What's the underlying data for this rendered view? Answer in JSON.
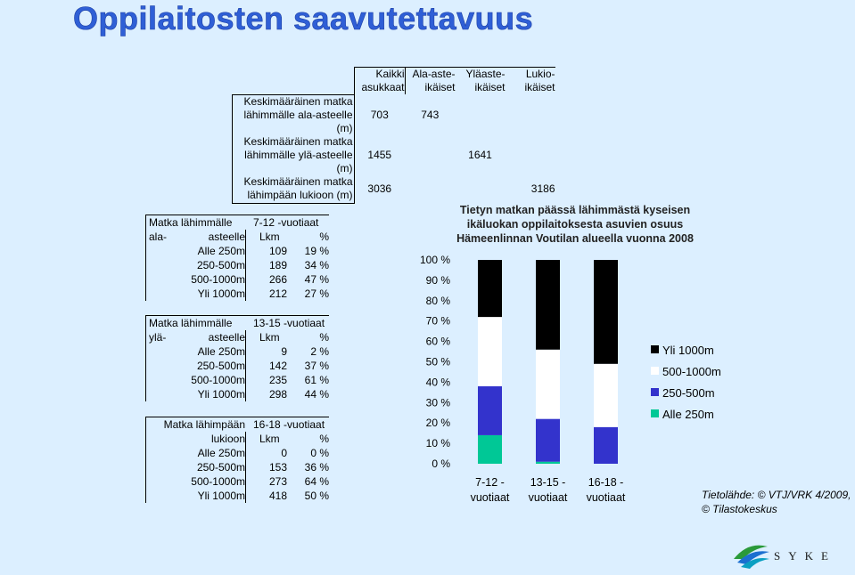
{
  "page": {
    "title": "Oppilaitosten saavutettavuus",
    "source_line1": "Tietolähde: © VTJ/VRK 4/2009,",
    "source_line2": "© Tilastokeskus",
    "logo_text": "SYKE"
  },
  "summary_table": {
    "columns": [
      "Kaikki asukkaat",
      "Ala-aste-ikäiset",
      "Yläaste-ikäiset",
      "Lukio-ikäiset"
    ],
    "column_lines": [
      [
        "Kaikki",
        "asukkaat"
      ],
      [
        "Ala-aste-",
        "ikäiset"
      ],
      [
        "Yläaste-",
        "ikäiset"
      ],
      [
        "Lukio-",
        "ikäiset"
      ]
    ],
    "rows": [
      {
        "label1": "Keskimääräinen matka",
        "label2": "lähimmälle ala-asteelle (m)",
        "values": [
          "703",
          "743",
          "",
          ""
        ]
      },
      {
        "label1": "Keskimääräinen matka",
        "label2": "lähimmälle ylä-asteelle (m)",
        "values": [
          "1455",
          "",
          "1641",
          ""
        ]
      },
      {
        "label1": "Keskimääräinen matka",
        "label2": "lähimpään lukioon (m)",
        "values": [
          "3036",
          "",
          "",
          "3186"
        ]
      }
    ]
  },
  "stat_blocks": [
    {
      "title1": "Matka lähimmälle ala-",
      "title2": "asteelle",
      "age_group": "7-12 -vuotiaat",
      "lkm_header": "Lkm",
      "pct_header": "%",
      "rows": [
        {
          "label": "Alle 250m",
          "count": "109",
          "pct": "19 %"
        },
        {
          "label": "250-500m",
          "count": "189",
          "pct": "34 %"
        },
        {
          "label": "500-1000m",
          "count": "266",
          "pct": "47 %"
        },
        {
          "label": "Yli 1000m",
          "count": "212",
          "pct": "27 %"
        }
      ]
    },
    {
      "title1": "Matka lähimmälle ylä-",
      "title2": "asteelle",
      "age_group": "13-15 -vuotiaat",
      "lkm_header": "Lkm",
      "pct_header": "%",
      "rows": [
        {
          "label": "Alle 250m",
          "count": "9",
          "pct": "2 %"
        },
        {
          "label": "250-500m",
          "count": "142",
          "pct": "37 %"
        },
        {
          "label": "500-1000m",
          "count": "235",
          "pct": "61 %"
        },
        {
          "label": "Yli 1000m",
          "count": "298",
          "pct": "44 %"
        }
      ]
    },
    {
      "title1": "Matka lähimpään",
      "title2": "lukioon",
      "age_group": "16-18 -vuotiaat",
      "lkm_header": "Lkm",
      "pct_header": "%",
      "rows": [
        {
          "label": "Alle 250m",
          "count": "0",
          "pct": "0 %"
        },
        {
          "label": "250-500m",
          "count": "153",
          "pct": "36 %"
        },
        {
          "label": "500-1000m",
          "count": "273",
          "pct": "64 %"
        },
        {
          "label": "Yli 1000m",
          "count": "418",
          "pct": "50 %"
        }
      ]
    }
  ],
  "chart_data": {
    "type": "bar",
    "stacked": "percent",
    "title_lines": [
      "Tietyn matkan päässä lähimmästä kyseisen",
      "ikäluokan oppilaitoksesta asuvien osuus",
      "Hämeenlinnan Voutilan alueella vuonna 2008"
    ],
    "categories": [
      "7-12 - vuotiaat",
      "13-15 - vuotiaat",
      "16-18 - vuotiaat"
    ],
    "category_lines": [
      [
        "7-12 -",
        "vuotiaat"
      ],
      [
        "13-15 -",
        "vuotiaat"
      ],
      [
        "16-18 -",
        "vuotiaat"
      ]
    ],
    "series": [
      {
        "name": "Alle 250m",
        "color": "#00c896",
        "values": [
          14,
          1,
          0
        ]
      },
      {
        "name": "250-500m",
        "color": "#3333cc",
        "values": [
          24,
          21,
          18
        ]
      },
      {
        "name": "500-1000m",
        "color": "#ffffff",
        "values": [
          34,
          34,
          31
        ]
      },
      {
        "name": "Yli 1000m",
        "color": "#000000",
        "values": [
          28,
          44,
          51
        ]
      }
    ],
    "legend_order": [
      "Yli 1000m",
      "500-1000m",
      "250-500m",
      "Alle 250m"
    ],
    "ylim": [
      0,
      100
    ],
    "yticks": [
      "0 %",
      "10 %",
      "20 %",
      "30 %",
      "40 %",
      "50 %",
      "60 %",
      "70 %",
      "80 %",
      "90 %",
      "100 %"
    ],
    "legend_position": "right"
  }
}
